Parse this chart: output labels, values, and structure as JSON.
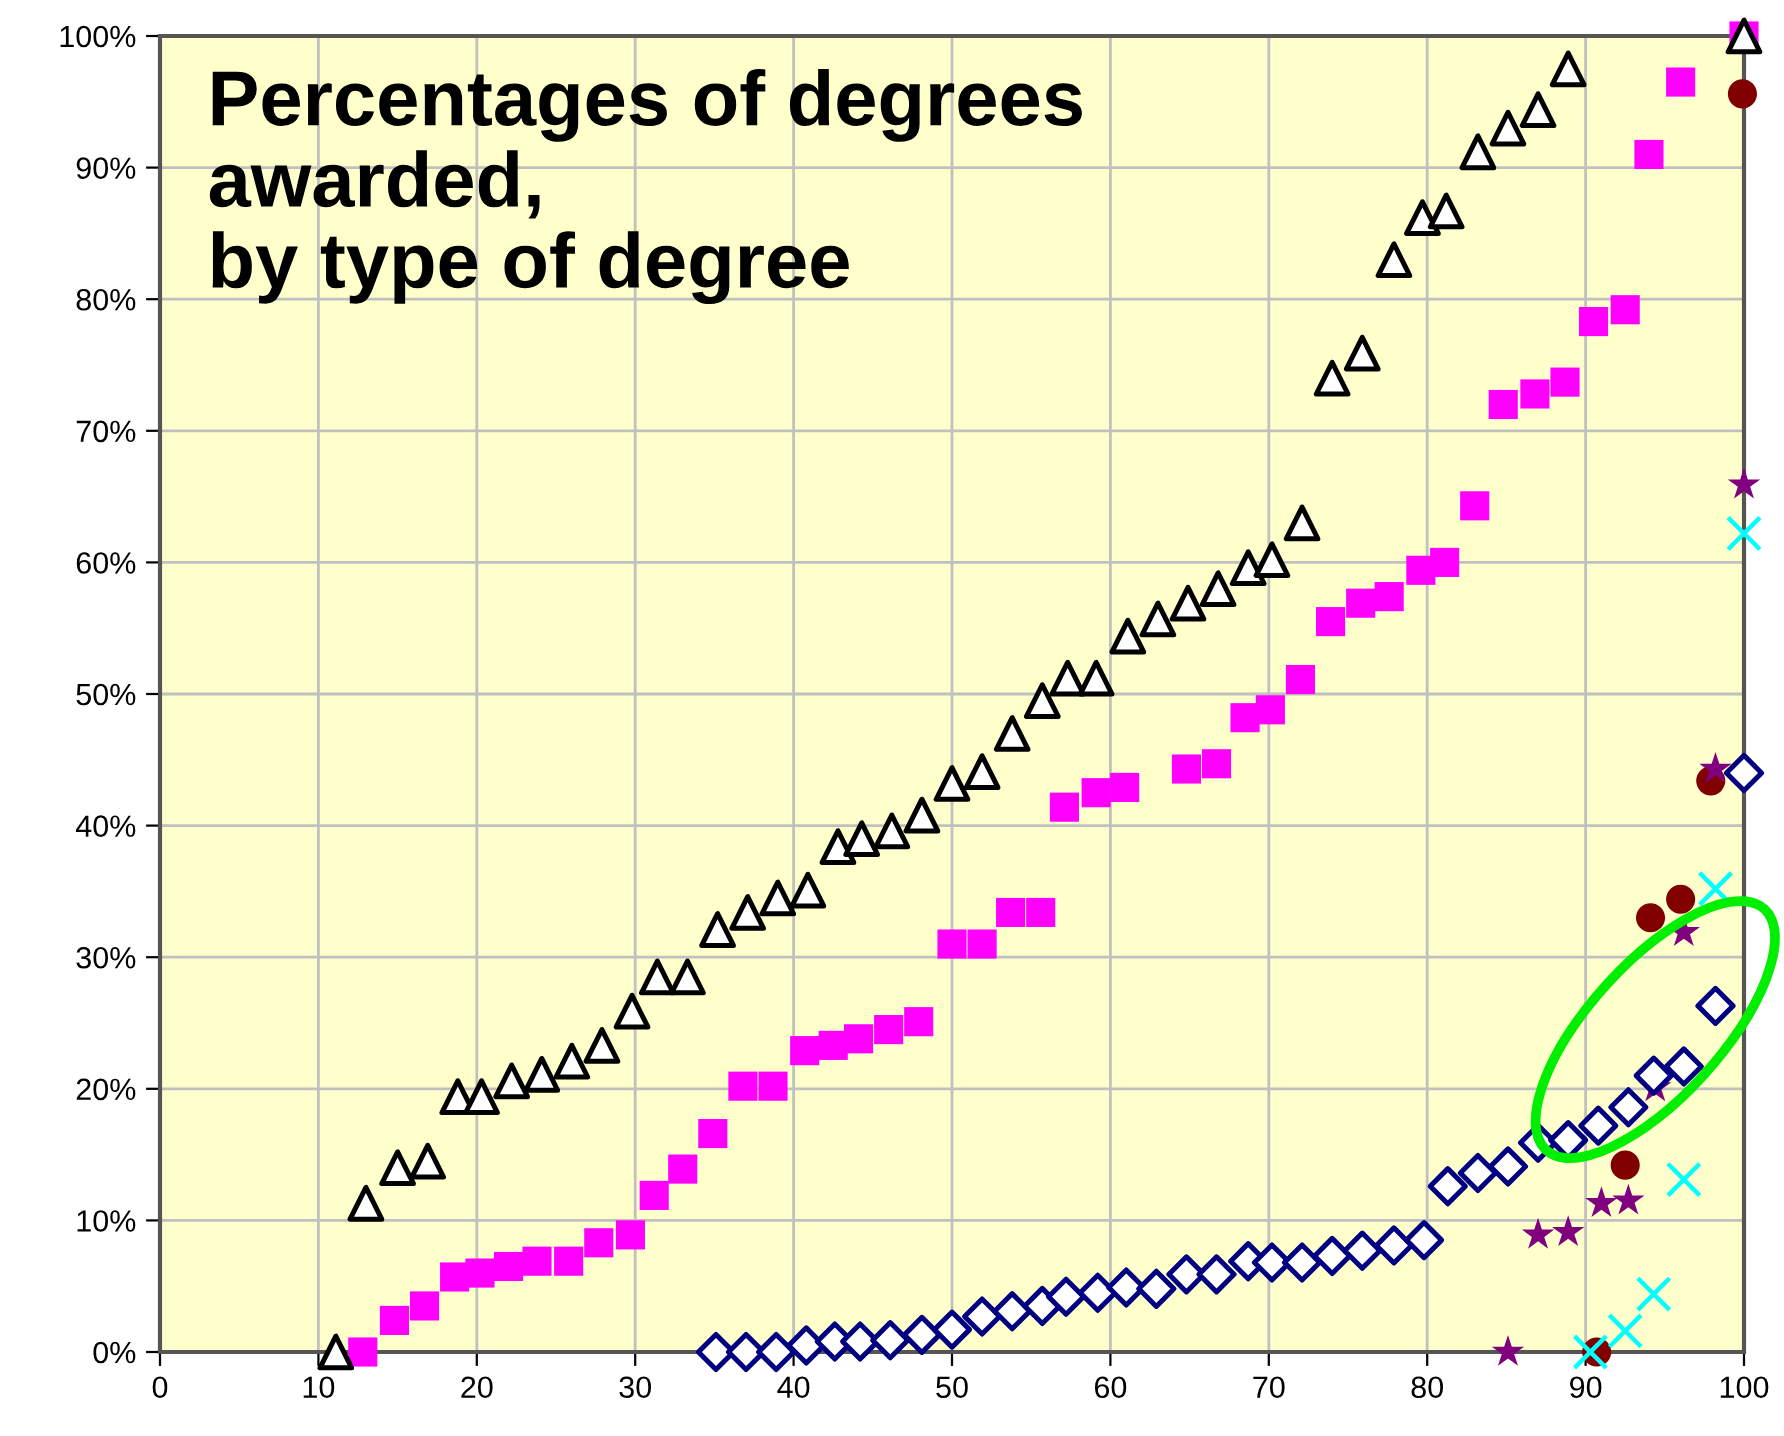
{
  "chart_data": {
    "type": "scatter",
    "title": "Percentages of degrees\nawarded,\nby type of degree",
    "xlim": [
      0,
      100
    ],
    "xticks": [
      0,
      10,
      20,
      30,
      40,
      50,
      60,
      70,
      80,
      90,
      100
    ],
    "ylim": [
      0,
      100
    ],
    "yticks": [
      {
        "value": 0,
        "label": "0%"
      },
      {
        "value": 10,
        "label": "10%"
      },
      {
        "value": 20,
        "label": "20%"
      },
      {
        "value": 30,
        "label": "30%"
      },
      {
        "value": 40,
        "label": "40%"
      },
      {
        "value": 50,
        "label": "50%"
      },
      {
        "value": 60,
        "label": "60%"
      },
      {
        "value": 70,
        "label": "70%"
      },
      {
        "value": 80,
        "label": "80%"
      },
      {
        "value": 90,
        "label": "90%"
      },
      {
        "value": 100,
        "label": "100%"
      }
    ],
    "grid": true,
    "legend": false,
    "series": [
      {
        "color": "#000000",
        "marker": "triangle",
        "x": [
          11.1,
          13.0,
          15.0,
          16.9,
          18.8,
          20.3,
          22.2,
          24.1,
          26.0,
          27.9,
          29.8,
          31.4,
          33.3,
          35.2,
          37.1,
          39.0,
          40.9,
          42.8,
          44.3,
          46.2,
          48.1,
          50.0,
          51.9,
          53.8,
          55.7,
          57.3,
          59.1,
          61.1,
          63.0,
          64.9,
          66.8,
          68.7,
          70.2,
          72.1,
          74.0,
          75.9,
          77.9,
          79.7,
          81.2,
          83.2,
          85.1,
          87.0,
          88.9,
          100
        ],
        "values": [
          0,
          11.3,
          14,
          14.5,
          19.4,
          19.4,
          20.6,
          21.1,
          22.1,
          23.3,
          25.9,
          28.5,
          28.5,
          32.1,
          33.4,
          34.5,
          35.1,
          38.4,
          39.0,
          39.6,
          40.8,
          43.2,
          44.1,
          47.0,
          49.5,
          51.2,
          51.2,
          54.4,
          55.7,
          56.9,
          58.0,
          59.6,
          60.2,
          63.0,
          74.0,
          75.9,
          83.0,
          86.2,
          86.7,
          91.2,
          93.0,
          94.4,
          97.5,
          100
        ]
      },
      {
        "color": "#ff00ff",
        "marker": "square",
        "x": [
          12.8,
          14.8,
          16.7,
          18.6,
          20.2,
          22.0,
          23.8,
          25.8,
          27.7,
          29.7,
          31.2,
          33.0,
          34.9,
          36.8,
          38.7,
          40.7,
          42.5,
          44.1,
          46.0,
          47.9,
          50.0,
          51.9,
          53.7,
          55.6,
          57.1,
          59.1,
          60.9,
          64.8,
          66.7,
          68.5,
          70.1,
          72.0,
          73.9,
          75.8,
          77.6,
          79.6,
          81.1,
          83.0,
          84.8,
          86.8,
          88.7,
          90.5,
          92.5,
          94.0,
          96.0,
          100
        ],
        "values": [
          0,
          2.4,
          3.5,
          5.7,
          6.0,
          6.5,
          6.9,
          6.9,
          8.3,
          8.9,
          11.9,
          13.9,
          16.6,
          20.2,
          20.2,
          22.9,
          23.3,
          23.8,
          24.5,
          25.1,
          31.0,
          31.0,
          33.4,
          33.4,
          41.4,
          42.5,
          42.9,
          44.3,
          44.7,
          48.2,
          48.8,
          51.1,
          55.5,
          56.9,
          57.4,
          59.4,
          60.0,
          64.3,
          72.0,
          72.8,
          73.7,
          78.3,
          79.2,
          91.0,
          96.5,
          100
        ]
      },
      {
        "color": "#000080",
        "marker": "diamond",
        "x": [
          35.1,
          37.0,
          38.9,
          40.8,
          42.6,
          44.2,
          46.1,
          48.1,
          50.0,
          51.9,
          53.8,
          55.7,
          57.2,
          59.2,
          61.0,
          62.9,
          64.8,
          66.7,
          68.7,
          70.2,
          72.1,
          74.0,
          75.9,
          77.9,
          79.8,
          81.3,
          83.2,
          85.1,
          87.0,
          88.9,
          90.8,
          92.7,
          94.3,
          96.2,
          98.2,
          100
        ],
        "values": [
          0,
          0,
          0,
          0.5,
          0.8,
          0.8,
          0.9,
          1.3,
          1.7,
          2.7,
          3.1,
          3.5,
          4.2,
          4.5,
          4.9,
          4.8,
          5.9,
          5.9,
          6.9,
          6.8,
          6.8,
          7.3,
          7.7,
          8.1,
          8.5,
          12.6,
          13.6,
          14.1,
          15.9,
          16.1,
          17.2,
          18.6,
          21.0,
          21.7,
          26.3,
          44.0
        ]
      },
      {
        "color": "#800000",
        "marker": "circle",
        "x": [
          90.7,
          92.5,
          94.1,
          96.0,
          97.9,
          99.9
        ],
        "values": [
          0,
          14.2,
          33.0,
          34.4,
          43.4,
          95.6
        ]
      },
      {
        "color": "#800080",
        "marker": "star",
        "x": [
          85.1,
          87.0,
          88.9,
          91.0,
          92.7,
          94.4,
          96.2,
          98.2,
          100
        ],
        "values": [
          0,
          8.9,
          9.1,
          11.3,
          11.5,
          20.1,
          31.9,
          44.3,
          65.9
        ]
      },
      {
        "color": "#00ffff",
        "marker": "cross",
        "x": [
          90.3,
          92.5,
          94.3,
          96.2,
          98.2,
          100
        ],
        "values": [
          0,
          1.6,
          4.4,
          13.1,
          35.2,
          62.2
        ]
      }
    ]
  }
}
